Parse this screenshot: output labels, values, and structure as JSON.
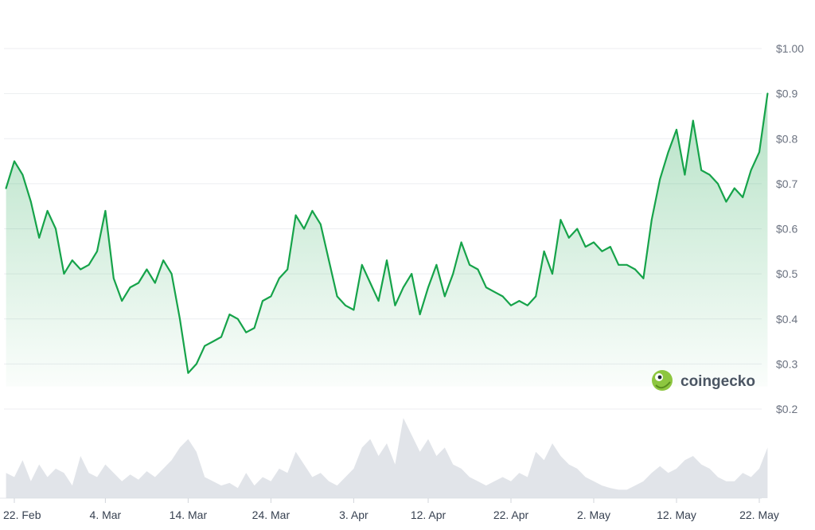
{
  "chart_data": {
    "type": "line",
    "title": "",
    "xlabel": "",
    "ylabel": "",
    "ylim": [
      0.2,
      1.0
    ],
    "y_tick_labels": [
      "$1.00",
      "$0.9",
      "$0.8",
      "$0.7",
      "$0.6",
      "$0.5",
      "$0.4",
      "$0.3",
      "$0.2"
    ],
    "y_tick_values": [
      1.0,
      0.9,
      0.8,
      0.7,
      0.6,
      0.5,
      0.4,
      0.3,
      0.2
    ],
    "x_tick_labels": [
      "22. Feb",
      "4. Mar",
      "14. Mar",
      "24. Mar",
      "3. Apr",
      "12. Apr",
      "22. Apr",
      "2. May",
      "12. May",
      "22. May"
    ],
    "x_tick_dates": [
      "2024-02-22",
      "2024-03-04",
      "2024-03-14",
      "2024-03-24",
      "2024-04-03",
      "2024-04-12",
      "2024-04-22",
      "2024-05-02",
      "2024-05-12",
      "2024-05-22"
    ],
    "grid": true,
    "line_color": "#16a34a",
    "fill_color": "#16a34a",
    "volume_color": "#d9dde3",
    "watermark": "coingecko",
    "series": [
      {
        "x": [
          "2024-02-21",
          "2024-02-22",
          "2024-02-23",
          "2024-02-24",
          "2024-02-25",
          "2024-02-26",
          "2024-02-27",
          "2024-02-28",
          "2024-02-29",
          "2024-03-01",
          "2024-03-02",
          "2024-03-03",
          "2024-03-04",
          "2024-03-05",
          "2024-03-06",
          "2024-03-07",
          "2024-03-08",
          "2024-03-09",
          "2024-03-10",
          "2024-03-11",
          "2024-03-12",
          "2024-03-13",
          "2024-03-14",
          "2024-03-15",
          "2024-03-16",
          "2024-03-17",
          "2024-03-18",
          "2024-03-19",
          "2024-03-20",
          "2024-03-21",
          "2024-03-22",
          "2024-03-23",
          "2024-03-24",
          "2024-03-25",
          "2024-03-26",
          "2024-03-27",
          "2024-03-28",
          "2024-03-29",
          "2024-03-30",
          "2024-03-31",
          "2024-04-01",
          "2024-04-02",
          "2024-04-03",
          "2024-04-04",
          "2024-04-05",
          "2024-04-06",
          "2024-04-07",
          "2024-04-08",
          "2024-04-09",
          "2024-04-10",
          "2024-04-11",
          "2024-04-12",
          "2024-04-13",
          "2024-04-14",
          "2024-04-15",
          "2024-04-16",
          "2024-04-17",
          "2024-04-18",
          "2024-04-19",
          "2024-04-20",
          "2024-04-21",
          "2024-04-22",
          "2024-04-23",
          "2024-04-24",
          "2024-04-25",
          "2024-04-26",
          "2024-04-27",
          "2024-04-28",
          "2024-04-29",
          "2024-04-30",
          "2024-05-01",
          "2024-05-02",
          "2024-05-03",
          "2024-05-04",
          "2024-05-05",
          "2024-05-06",
          "2024-05-07",
          "2024-05-08",
          "2024-05-09",
          "2024-05-10",
          "2024-05-11",
          "2024-05-12",
          "2024-05-13",
          "2024-05-14",
          "2024-05-15",
          "2024-05-16",
          "2024-05-17",
          "2024-05-18",
          "2024-05-19",
          "2024-05-20",
          "2024-05-21",
          "2024-05-22",
          "2024-05-23"
        ],
        "y": [
          0.69,
          0.75,
          0.72,
          0.66,
          0.58,
          0.64,
          0.6,
          0.5,
          0.53,
          0.51,
          0.52,
          0.55,
          0.64,
          0.49,
          0.44,
          0.47,
          0.48,
          0.51,
          0.48,
          0.53,
          0.5,
          0.4,
          0.28,
          0.3,
          0.34,
          0.35,
          0.36,
          0.41,
          0.4,
          0.37,
          0.38,
          0.44,
          0.45,
          0.49,
          0.51,
          0.63,
          0.6,
          0.64,
          0.61,
          0.53,
          0.45,
          0.43,
          0.42,
          0.52,
          0.48,
          0.44,
          0.53,
          0.43,
          0.47,
          0.5,
          0.41,
          0.47,
          0.52,
          0.45,
          0.5,
          0.57,
          0.52,
          0.51,
          0.47,
          0.46,
          0.45,
          0.43,
          0.44,
          0.43,
          0.45,
          0.55,
          0.5,
          0.62,
          0.58,
          0.6,
          0.56,
          0.57,
          0.55,
          0.56,
          0.52,
          0.52,
          0.51,
          0.49,
          0.62,
          0.71,
          0.77,
          0.82,
          0.72,
          0.84,
          0.73,
          0.72,
          0.7,
          0.66,
          0.69,
          0.67,
          0.73,
          0.77,
          0.9
        ]
      }
    ],
    "volume": [
      0.3,
      0.25,
      0.45,
      0.2,
      0.4,
      0.25,
      0.35,
      0.3,
      0.15,
      0.5,
      0.3,
      0.25,
      0.4,
      0.3,
      0.2,
      0.28,
      0.22,
      0.32,
      0.25,
      0.35,
      0.45,
      0.6,
      0.7,
      0.55,
      0.25,
      0.2,
      0.15,
      0.18,
      0.12,
      0.3,
      0.15,
      0.25,
      0.2,
      0.35,
      0.3,
      0.55,
      0.4,
      0.25,
      0.3,
      0.2,
      0.15,
      0.25,
      0.35,
      0.6,
      0.7,
      0.5,
      0.65,
      0.4,
      0.95,
      0.75,
      0.55,
      0.7,
      0.5,
      0.6,
      0.4,
      0.35,
      0.25,
      0.2,
      0.15,
      0.2,
      0.25,
      0.2,
      0.3,
      0.25,
      0.55,
      0.45,
      0.65,
      0.5,
      0.4,
      0.35,
      0.25,
      0.2,
      0.15,
      0.12,
      0.1,
      0.1,
      0.15,
      0.2,
      0.3,
      0.38,
      0.3,
      0.35,
      0.45,
      0.5,
      0.4,
      0.35,
      0.25,
      0.2,
      0.2,
      0.3,
      0.25,
      0.35,
      0.6
    ]
  }
}
